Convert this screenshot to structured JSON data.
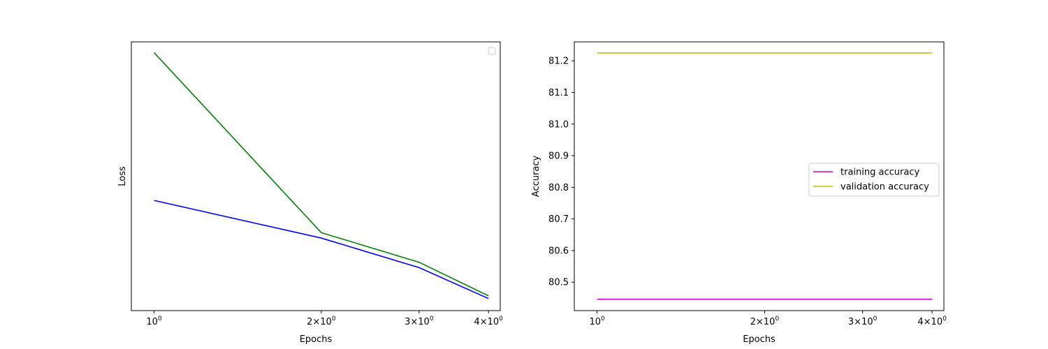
{
  "chart_data": [
    {
      "type": "line",
      "xscale": "log",
      "xlabel": "Epochs",
      "ylabel": "Loss",
      "x": [
        1,
        2,
        3,
        4
      ],
      "xticks": [
        {
          "value": 1,
          "base": "10",
          "exp": "0"
        },
        {
          "value": 2,
          "base": "2×10",
          "exp": "0"
        },
        {
          "value": 3,
          "base": "3×10",
          "exp": "0"
        },
        {
          "value": 4,
          "base": "4×10",
          "exp": "0"
        }
      ],
      "xlim": [
        0.91,
        4.2
      ],
      "ylim": [
        0.0,
        1.0
      ],
      "yticks_visible": false,
      "legend": {
        "placement": "upper right",
        "entries": []
      },
      "series": [
        {
          "color": "#0000ff",
          "values": [
            0.41,
            0.27,
            0.16,
            0.045
          ]
        },
        {
          "color": "#008000",
          "values": [
            0.96,
            0.29,
            0.18,
            0.055
          ]
        }
      ]
    },
    {
      "type": "line",
      "xscale": "log",
      "xlabel": "Epochs",
      "ylabel": "Accuracy",
      "x": [
        1,
        2,
        3,
        4
      ],
      "xticks": [
        {
          "value": 1,
          "base": "10",
          "exp": "0"
        },
        {
          "value": 2,
          "base": "2×10",
          "exp": "0"
        },
        {
          "value": 3,
          "base": "3×10",
          "exp": "0"
        },
        {
          "value": 4,
          "base": "4×10",
          "exp": "0"
        }
      ],
      "xlim": [
        0.91,
        4.2
      ],
      "ylim": [
        80.41,
        81.26
      ],
      "yticks": [
        {
          "value": 80.5,
          "label": "80.5"
        },
        {
          "value": 80.6,
          "label": "80.6"
        },
        {
          "value": 80.7,
          "label": "80.7"
        },
        {
          "value": 80.8,
          "label": "80.8"
        },
        {
          "value": 80.9,
          "label": "80.9"
        },
        {
          "value": 81.0,
          "label": "81.0"
        },
        {
          "value": 81.1,
          "label": "81.1"
        },
        {
          "value": 81.2,
          "label": "81.2"
        }
      ],
      "legend": {
        "placement": "center right"
      },
      "series": [
        {
          "name": "training accuracy",
          "color": "#bf00bf",
          "values": [
            80.446,
            80.446,
            80.446,
            80.446
          ]
        },
        {
          "name": "validation accuracy",
          "color": "#bfbf00",
          "values": [
            81.225,
            81.225,
            81.225,
            81.225
          ]
        }
      ]
    }
  ]
}
